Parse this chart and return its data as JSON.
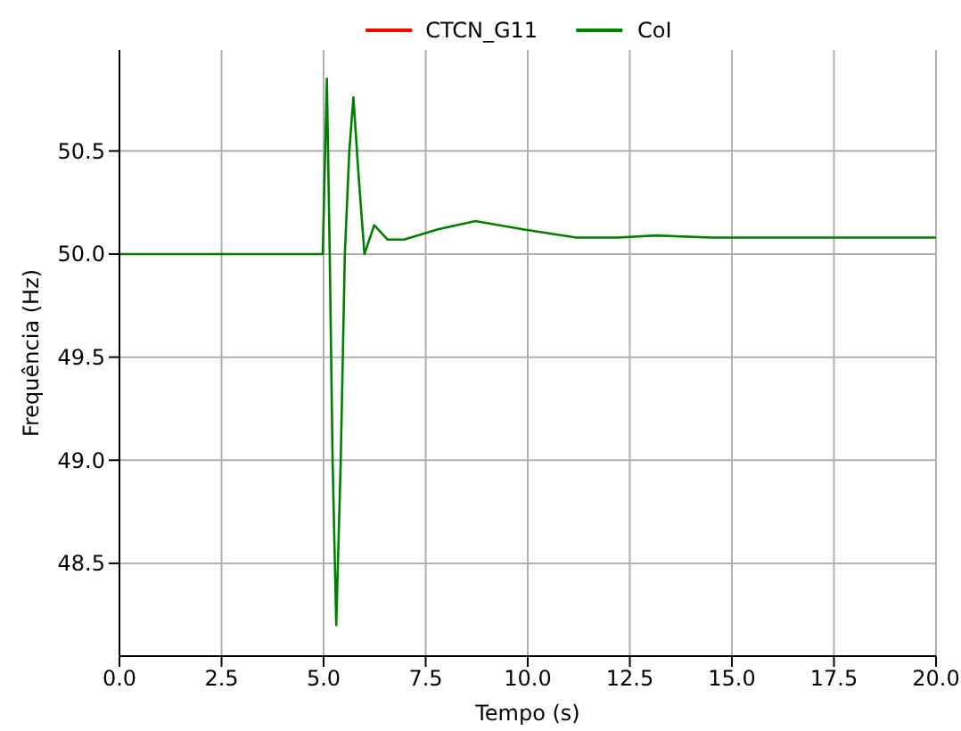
{
  "chart_data": {
    "type": "line",
    "xlabel": "Tempo (s)",
    "ylabel": "Frequência (Hz)",
    "x": [
      0,
      4.98,
      5.08,
      5.15,
      5.22,
      5.31,
      5.42,
      5.52,
      5.63,
      5.73,
      5.85,
      6.0,
      6.24,
      6.57,
      6.97,
      7.8,
      8.72,
      9.88,
      11.19,
      12.2,
      13.15,
      14.5,
      16.0,
      18.0,
      20.0
    ],
    "series": [
      {
        "name": "CTCN_G11",
        "color": "#ff0000",
        "values": [
          null,
          null,
          null,
          null,
          null,
          null,
          null,
          null,
          null,
          null,
          null,
          null,
          null,
          null,
          null,
          null,
          null,
          null,
          null,
          null,
          null,
          null,
          null,
          null,
          null
        ]
      },
      {
        "name": "CoI",
        "color": "#008000",
        "values": [
          50.0,
          50.0,
          50.85,
          50.0,
          49.0,
          48.2,
          49.0,
          50.0,
          50.5,
          50.76,
          50.4,
          50.0,
          50.14,
          50.07,
          50.07,
          50.12,
          50.16,
          50.12,
          50.08,
          50.08,
          50.09,
          50.08,
          50.08,
          50.08,
          50.08
        ]
      }
    ],
    "xlim": [
      0,
      20
    ],
    "ylim": [
      48.05,
      50.99
    ],
    "xticks": [
      {
        "value": 0,
        "label": "0.0"
      },
      {
        "value": 2.5,
        "label": "2.5"
      },
      {
        "value": 5,
        "label": "5.0"
      },
      {
        "value": 7.5,
        "label": "7.5"
      },
      {
        "value": 10,
        "label": "10.0"
      },
      {
        "value": 12.5,
        "label": "12.5"
      },
      {
        "value": 15,
        "label": "15.0"
      },
      {
        "value": 17.5,
        "label": "17.5"
      },
      {
        "value": 20,
        "label": "20.0"
      }
    ],
    "yticks": [
      {
        "value": 48.5,
        "label": "48.5"
      },
      {
        "value": 49,
        "label": "49.0"
      },
      {
        "value": 49.5,
        "label": "49.5"
      },
      {
        "value": 50,
        "label": "50.0"
      },
      {
        "value": 50.5,
        "label": "50.5"
      }
    ],
    "grid": true,
    "legend": "top",
    "marker": "none",
    "line_style": "solid"
  }
}
